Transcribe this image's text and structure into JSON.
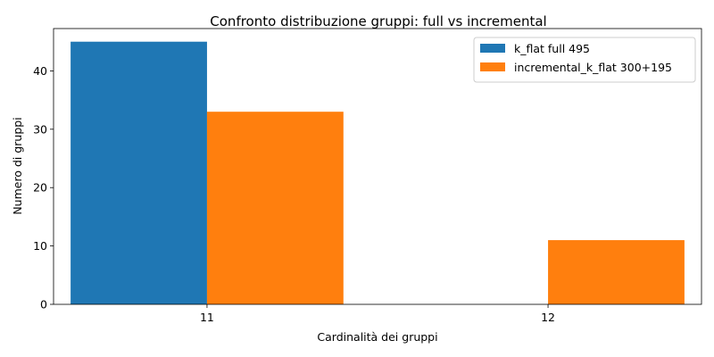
{
  "chart_data": {
    "type": "bar",
    "title": "Confronto distribuzione gruppi: full vs incremental",
    "xlabel": "Cardinalità dei gruppi",
    "ylabel": "Numero di gruppi",
    "categories": [
      "11",
      "12"
    ],
    "series": [
      {
        "name": "k_flat full 495",
        "values": [
          45,
          0
        ],
        "color": "#1f77b4"
      },
      {
        "name": "incremental_k_flat 300+195",
        "values": [
          33,
          11
        ],
        "color": "#ff7f0e"
      }
    ],
    "ylim": [
      0,
      47.25
    ],
    "yticks": [
      0,
      10,
      20,
      30,
      40
    ],
    "grid": false,
    "legend": "top-right"
  }
}
